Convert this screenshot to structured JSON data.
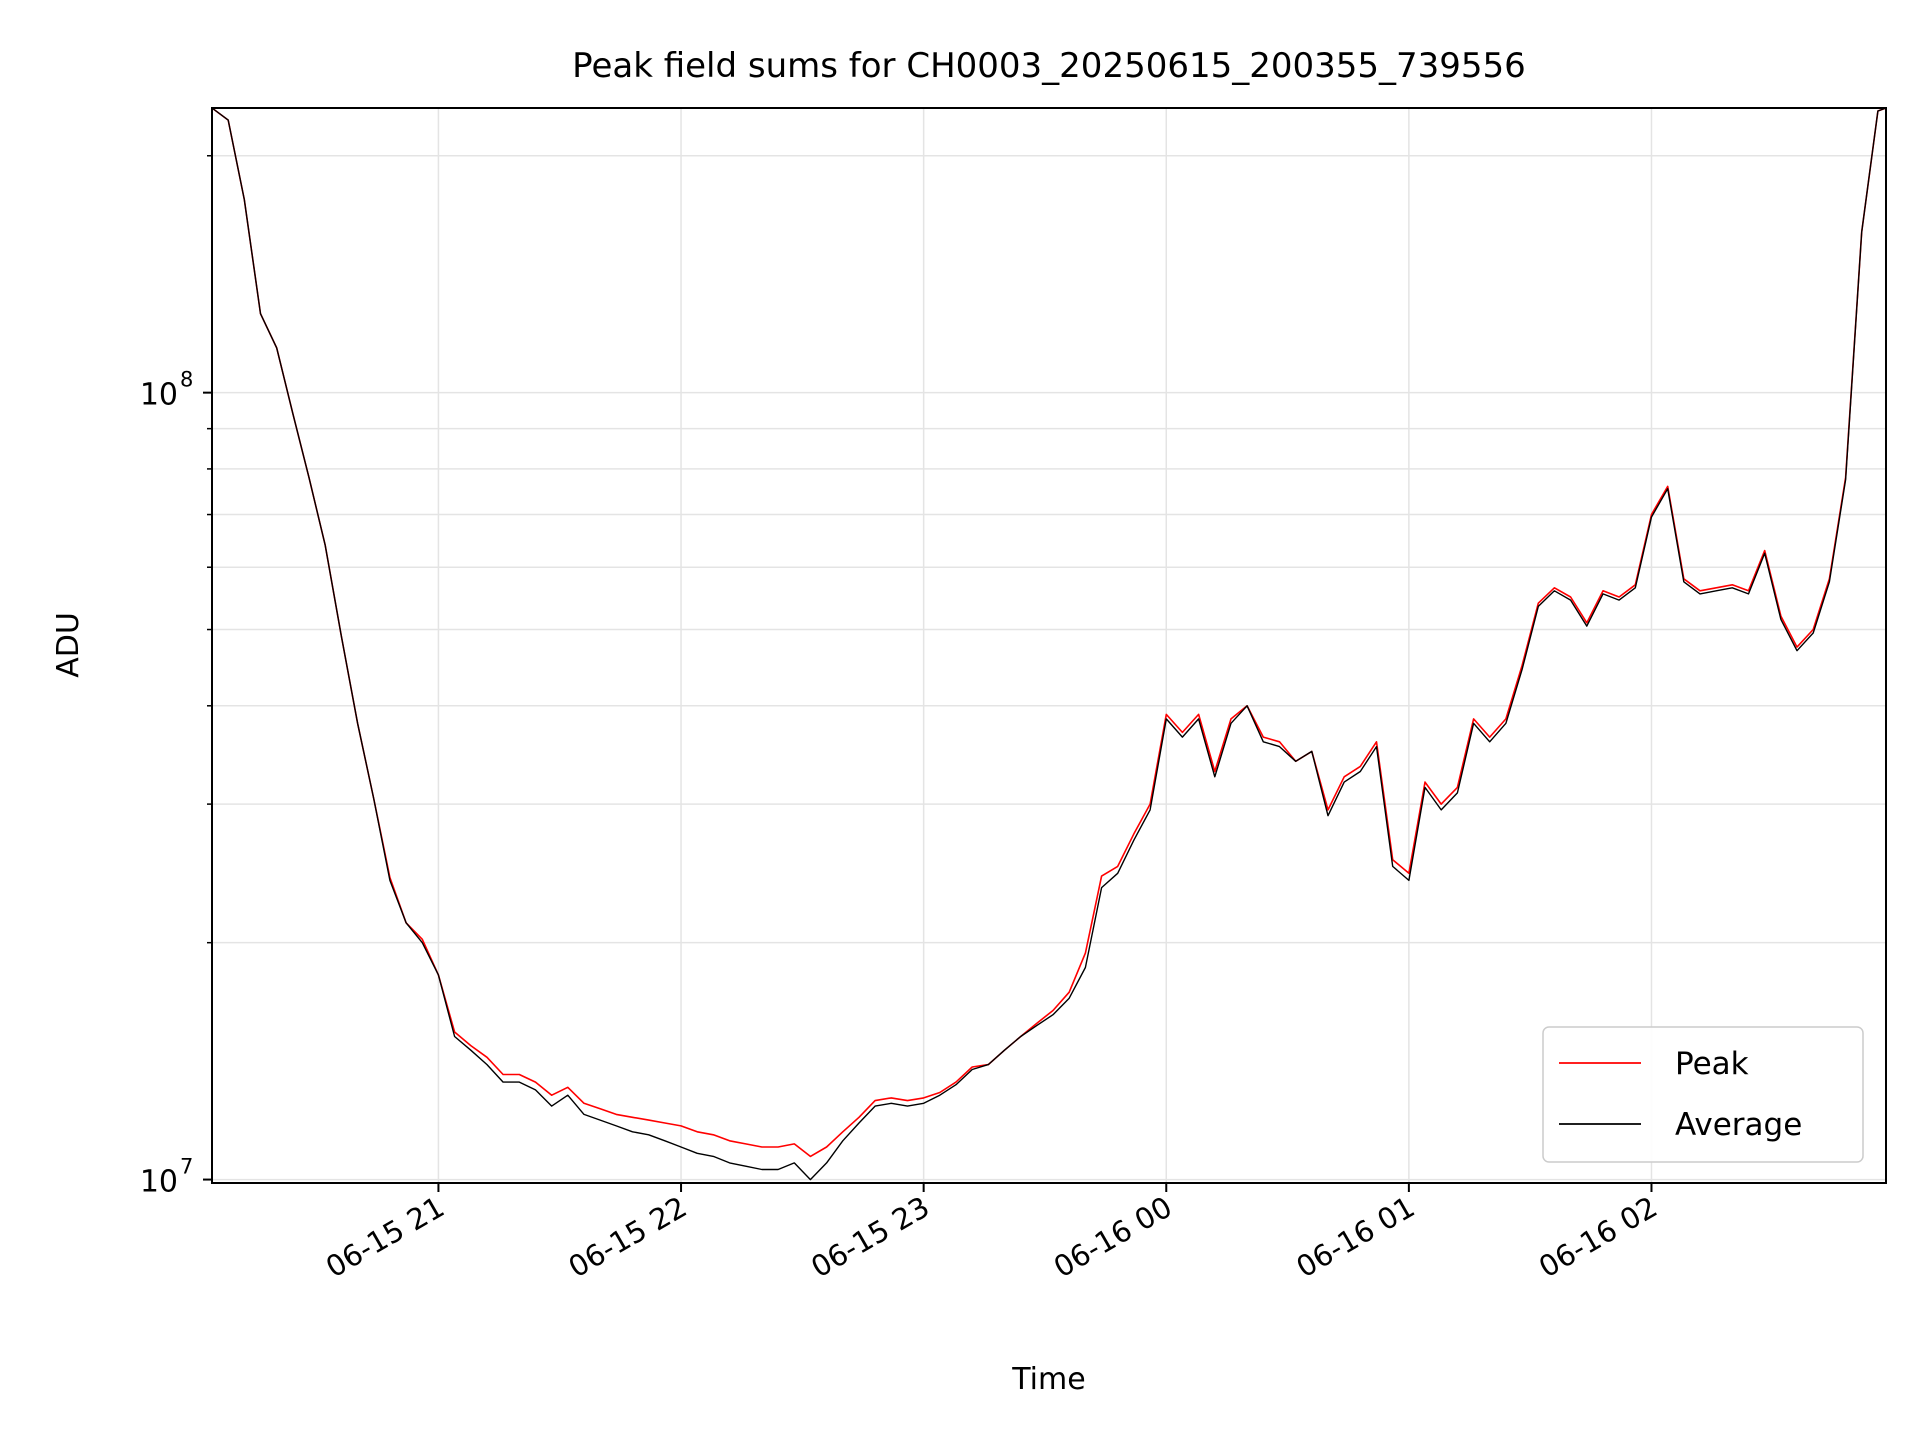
{
  "chart_data": {
    "type": "line",
    "title": "Peak field sums for CH0003_20250615_200355_739556",
    "xlabel": "Time",
    "ylabel": "ADU",
    "yscale": "log",
    "ylim": [
      9900000,
      230000000
    ],
    "xlim": [
      "2025-06-15 20:04",
      "2025-06-16 02:58"
    ],
    "grid": true,
    "legend_position": "lower-right",
    "x_ticks": [
      {
        "t": "2025-06-15 21:00",
        "label": "06-15 21"
      },
      {
        "t": "2025-06-15 22:00",
        "label": "06-15 22"
      },
      {
        "t": "2025-06-15 23:00",
        "label": "06-15 23"
      },
      {
        "t": "2025-06-16 00:00",
        "label": "06-16 00"
      },
      {
        "t": "2025-06-16 01:00",
        "label": "06-16 01"
      },
      {
        "t": "2025-06-16 02:00",
        "label": "06-16 02"
      }
    ],
    "y_ticks": [
      {
        "value": 10000000,
        "base": "10",
        "exp": "7"
      },
      {
        "value": 100000000,
        "base": "10",
        "exp": "8"
      }
    ],
    "series": [
      {
        "name": "Peak",
        "color": "#ff0000"
      },
      {
        "name": "Average",
        "color": "#000000"
      }
    ],
    "x": [
      "2025-06-15 20:04",
      "2025-06-15 20:08",
      "2025-06-15 20:12",
      "2025-06-15 20:16",
      "2025-06-15 20:20",
      "2025-06-15 20:24",
      "2025-06-15 20:28",
      "2025-06-15 20:32",
      "2025-06-15 20:36",
      "2025-06-15 20:40",
      "2025-06-15 20:44",
      "2025-06-15 20:48",
      "2025-06-15 20:52",
      "2025-06-15 20:56",
      "2025-06-15 21:00",
      "2025-06-15 21:04",
      "2025-06-15 21:08",
      "2025-06-15 21:12",
      "2025-06-15 21:16",
      "2025-06-15 21:20",
      "2025-06-15 21:24",
      "2025-06-15 21:28",
      "2025-06-15 21:32",
      "2025-06-15 21:36",
      "2025-06-15 21:40",
      "2025-06-15 21:44",
      "2025-06-15 21:48",
      "2025-06-15 21:52",
      "2025-06-15 21:56",
      "2025-06-15 22:00",
      "2025-06-15 22:04",
      "2025-06-15 22:08",
      "2025-06-15 22:12",
      "2025-06-15 22:16",
      "2025-06-15 22:20",
      "2025-06-15 22:24",
      "2025-06-15 22:28",
      "2025-06-15 22:32",
      "2025-06-15 22:36",
      "2025-06-15 22:40",
      "2025-06-15 22:44",
      "2025-06-15 22:48",
      "2025-06-15 22:52",
      "2025-06-15 22:56",
      "2025-06-15 23:00",
      "2025-06-15 23:04",
      "2025-06-15 23:08",
      "2025-06-15 23:12",
      "2025-06-15 23:16",
      "2025-06-15 23:20",
      "2025-06-15 23:24",
      "2025-06-15 23:28",
      "2025-06-15 23:32",
      "2025-06-15 23:36",
      "2025-06-15 23:40",
      "2025-06-15 23:44",
      "2025-06-15 23:48",
      "2025-06-15 23:52",
      "2025-06-15 23:56",
      "2025-06-16 00:00",
      "2025-06-16 00:04",
      "2025-06-16 00:08",
      "2025-06-16 00:12",
      "2025-06-16 00:16",
      "2025-06-16 00:20",
      "2025-06-16 00:24",
      "2025-06-16 00:28",
      "2025-06-16 00:32",
      "2025-06-16 00:36",
      "2025-06-16 00:40",
      "2025-06-16 00:44",
      "2025-06-16 00:48",
      "2025-06-16 00:52",
      "2025-06-16 00:56",
      "2025-06-16 01:00",
      "2025-06-16 01:04",
      "2025-06-16 01:08",
      "2025-06-16 01:12",
      "2025-06-16 01:16",
      "2025-06-16 01:20",
      "2025-06-16 01:24",
      "2025-06-16 01:28",
      "2025-06-16 01:32",
      "2025-06-16 01:36",
      "2025-06-16 01:40",
      "2025-06-16 01:44",
      "2025-06-16 01:48",
      "2025-06-16 01:52",
      "2025-06-16 01:56",
      "2025-06-16 02:00",
      "2025-06-16 02:04",
      "2025-06-16 02:08",
      "2025-06-16 02:12",
      "2025-06-16 02:16",
      "2025-06-16 02:20",
      "2025-06-16 02:24",
      "2025-06-16 02:28",
      "2025-06-16 02:32",
      "2025-06-16 02:36",
      "2025-06-16 02:40",
      "2025-06-16 02:44",
      "2025-06-16 02:48",
      "2025-06-16 02:52",
      "2025-06-16 02:56",
      "2025-06-16 02:58"
    ],
    "peak": [
      230000000,
      222000000,
      176000000,
      126000000,
      114000000,
      94000000,
      78000000,
      64000000,
      49000000,
      38000000,
      30500000,
      24200000,
      21200000,
      20200000,
      18200000,
      15400000,
      14800000,
      14300000,
      13600000,
      13600000,
      13300000,
      12800000,
      13100000,
      12500000,
      12300000,
      12100000,
      12000000,
      11900000,
      11800000,
      11700000,
      11500000,
      11400000,
      11200000,
      11100000,
      11000000,
      11000000,
      11100000,
      10700000,
      11000000,
      11500000,
      12000000,
      12600000,
      12700000,
      12600000,
      12700000,
      12900000,
      13300000,
      13900000,
      14000000,
      14600000,
      15200000,
      15800000,
      16400000,
      17300000,
      19400000,
      24300000,
      25000000,
      27500000,
      30000000,
      39000000,
      37000000,
      39000000,
      33000000,
      38500000,
      40000000,
      36500000,
      36000000,
      34000000,
      35000000,
      29500000,
      32500000,
      33500000,
      36000000,
      25500000,
      24500000,
      32000000,
      30000000,
      31500000,
      38500000,
      36500000,
      38500000,
      45000000,
      54000000,
      56500000,
      55000000,
      51000000,
      56000000,
      55000000,
      57000000,
      70000000,
      76000000,
      58000000,
      56000000,
      56500000,
      57000000,
      56000000,
      63000000,
      52000000,
      47500000,
      50000000,
      58000000,
      78000000,
      160000000,
      228000000,
      230000000
    ],
    "average": [
      230000000,
      222000000,
      176000000,
      126000000,
      114000000,
      94000000,
      78000000,
      64000000,
      49000000,
      38000000,
      30500000,
      24000000,
      21200000,
      20000000,
      18200000,
      15200000,
      14600000,
      14000000,
      13300000,
      13300000,
      13000000,
      12400000,
      12800000,
      12100000,
      11900000,
      11700000,
      11500000,
      11400000,
      11200000,
      11000000,
      10800000,
      10700000,
      10500000,
      10400000,
      10300000,
      10300000,
      10500000,
      10000000,
      10500000,
      11200000,
      11800000,
      12400000,
      12500000,
      12400000,
      12500000,
      12800000,
      13200000,
      13800000,
      14000000,
      14600000,
      15200000,
      15700000,
      16200000,
      17000000,
      18600000,
      23500000,
      24500000,
      27000000,
      29500000,
      38500000,
      36500000,
      38500000,
      32500000,
      38000000,
      40000000,
      36000000,
      35500000,
      34000000,
      35000000,
      29000000,
      32000000,
      33000000,
      35500000,
      25000000,
      24000000,
      31500000,
      29500000,
      31000000,
      38000000,
      36000000,
      38000000,
      44500000,
      53500000,
      56000000,
      54500000,
      50500000,
      55500000,
      54500000,
      56500000,
      69500000,
      75500000,
      57500000,
      55500000,
      56000000,
      56500000,
      55500000,
      62500000,
      51500000,
      47000000,
      49500000,
      57500000,
      77500000,
      160000000,
      228000000,
      230000000
    ]
  }
}
